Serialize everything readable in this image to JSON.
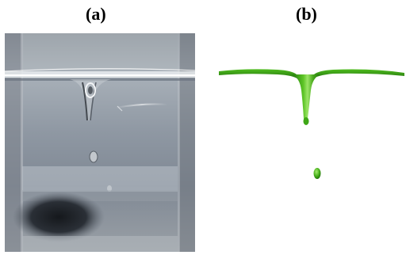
{
  "figure": {
    "panels": [
      {
        "label": "(a)",
        "kind": "photograph"
      },
      {
        "label": "(b)",
        "kind": "simulation-render"
      }
    ],
    "colors": {
      "simulation_fluid": "#3fae17",
      "simulation_highlight": "#8fe05a",
      "photo_background": "#8b95a0",
      "photo_dark": "#1c2026"
    }
  }
}
